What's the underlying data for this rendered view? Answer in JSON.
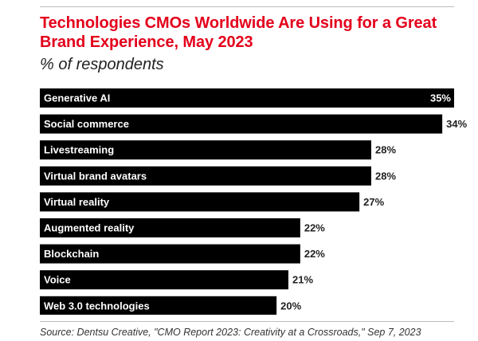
{
  "chart_data": {
    "type": "bar",
    "orientation": "horizontal",
    "title": "Technologies CMOs Worldwide Are Using for a Great Brand Experience, May 2023",
    "subtitle": "% of respondents",
    "categories": [
      "Generative AI",
      "Social commerce",
      "Livestreaming",
      "Virtual brand avatars",
      "Virtual reality",
      "Augmented reality",
      "Blockchain",
      "Voice",
      "Web 3.0 technologies"
    ],
    "values": [
      35,
      34,
      28,
      28,
      27,
      22,
      22,
      21,
      20
    ],
    "value_labels": [
      "35%",
      "34%",
      "28%",
      "28%",
      "27%",
      "22%",
      "22%",
      "21%",
      "20%"
    ],
    "xlim": [
      0,
      35
    ],
    "grid": false,
    "legend": "none",
    "bar_color": "#000000",
    "label_color": "#ffffff"
  },
  "source": "Source: Dentsu Creative, \"CMO Report 2023: Creativity at a Crossroads,\" Sep 7, 2023",
  "colors": {
    "title": "#e3001b",
    "bars": "#000000",
    "text": "#222222"
  }
}
